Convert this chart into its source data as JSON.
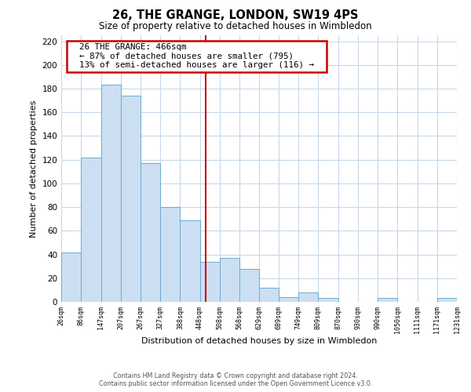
{
  "title": "26, THE GRANGE, LONDON, SW19 4PS",
  "subtitle": "Size of property relative to detached houses in Wimbledon",
  "xlabel": "Distribution of detached houses by size in Wimbledon",
  "ylabel": "Number of detached properties",
  "footer_line1": "Contains HM Land Registry data © Crown copyright and database right 2024.",
  "footer_line2": "Contains public sector information licensed under the Open Government Licence v3.0.",
  "annotation_title": "26 THE GRANGE: 466sqm",
  "annotation_line2": "← 87% of detached houses are smaller (795)",
  "annotation_line3": "13% of semi-detached houses are larger (116) →",
  "property_line_x": 466,
  "bar_color": "#ccdff2",
  "bar_edge_color": "#6aabd2",
  "property_line_color": "#cc0000",
  "annotation_box_edge_color": "#cc0000",
  "bins": [
    26,
    86,
    147,
    207,
    267,
    327,
    388,
    448,
    508,
    568,
    629,
    689,
    749,
    809,
    870,
    930,
    990,
    1050,
    1111,
    1171,
    1231
  ],
  "heights": [
    42,
    122,
    183,
    174,
    117,
    80,
    69,
    34,
    37,
    28,
    12,
    4,
    8,
    3,
    0,
    0,
    3,
    0,
    0,
    3
  ],
  "ylim": [
    0,
    225
  ],
  "yticks": [
    0,
    20,
    40,
    60,
    80,
    100,
    120,
    140,
    160,
    180,
    200,
    220
  ],
  "background_color": "#ffffff",
  "grid_color": "#c8d8ea"
}
